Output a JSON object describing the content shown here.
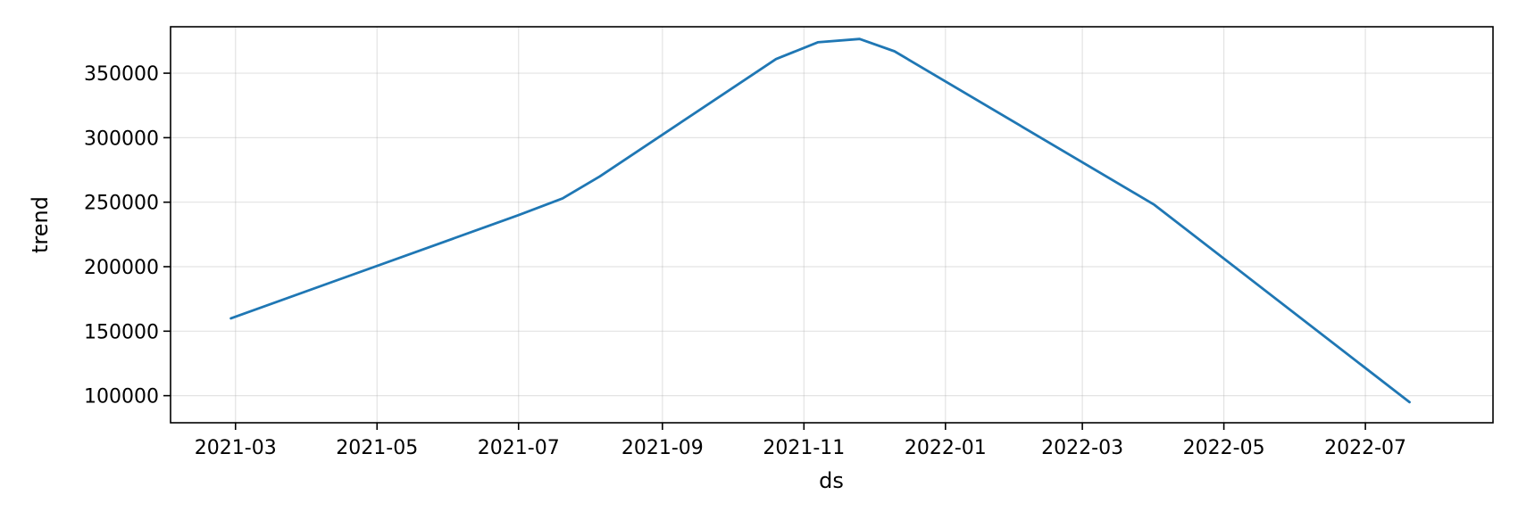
{
  "chart_data": {
    "type": "line",
    "title": "",
    "xlabel": "ds",
    "ylabel": "trend",
    "x_ticks": [
      "2021-03",
      "2021-05",
      "2021-07",
      "2021-09",
      "2021-11",
      "2022-01",
      "2022-03",
      "2022-05",
      "2022-07"
    ],
    "y_ticks": [
      100000,
      150000,
      200000,
      250000,
      300000,
      350000
    ],
    "y_tick_labels": [
      "100000",
      "150000",
      "200000",
      "250000",
      "300000",
      "350000"
    ],
    "xlim": [
      "2021-02-01",
      "2022-08-25"
    ],
    "ylim": [
      79000,
      386000
    ],
    "grid": true,
    "legend": "none",
    "series": [
      {
        "color": "#1f77b4",
        "x": [
          "2021-02-27",
          "2021-07-01",
          "2021-07-20",
          "2021-08-05",
          "2021-10-20",
          "2021-11-07",
          "2021-11-25",
          "2021-12-10",
          "2022-04-01",
          "2022-07-20"
        ],
        "y": [
          160000,
          240000,
          253000,
          270000,
          361000,
          374000,
          376500,
          367000,
          248000,
          95000
        ]
      }
    ]
  }
}
